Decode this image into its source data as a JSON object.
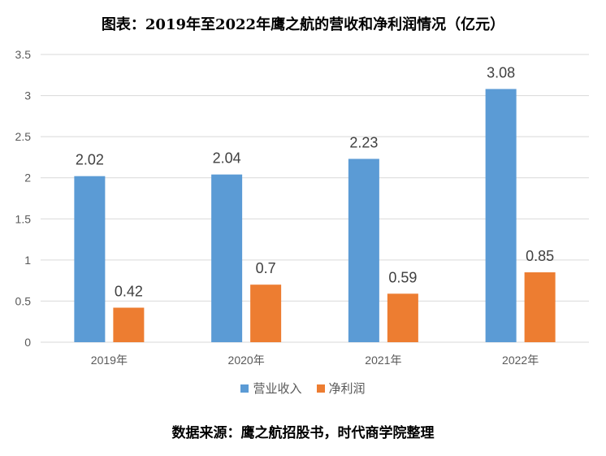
{
  "title": "图表：2019年至2022年鹰之航的营收和净利润情况（亿元）",
  "source": "数据来源：鹰之航招股书，时代商学院整理",
  "chart_data": {
    "type": "bar",
    "title": "图表：2019年至2022年鹰之航的营收和净利润情况（亿元）",
    "categories": [
      "2019年",
      "2020年",
      "2021年",
      "2022年"
    ],
    "series": [
      {
        "name": "营业收入",
        "color": "#5b9bd5",
        "values": [
          2.02,
          2.04,
          2.23,
          3.08
        ],
        "labels": [
          "2.02",
          "2.04",
          "2.23",
          "3.08"
        ]
      },
      {
        "name": "净利润",
        "color": "#ed7d31",
        "values": [
          0.42,
          0.7,
          0.59,
          0.85
        ],
        "labels": [
          "0.42",
          "0.7",
          "0.59",
          "0.85"
        ]
      }
    ],
    "ylim": [
      0,
      3.5
    ],
    "yticks": [
      "0",
      "0.5",
      "1",
      "1.5",
      "2",
      "2.5",
      "3",
      "3.5"
    ],
    "grid": true,
    "legend_position": "bottom"
  }
}
